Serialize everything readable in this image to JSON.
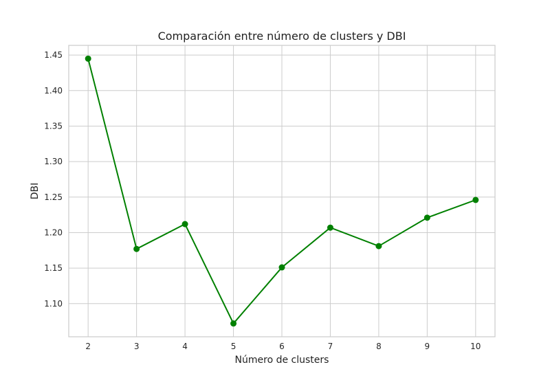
{
  "chart_data": {
    "type": "line",
    "title": "Comparación entre número de clusters y DBI",
    "xlabel": "Número de clusters",
    "ylabel": "DBI",
    "x": [
      2,
      3,
      4,
      5,
      6,
      7,
      8,
      9,
      10
    ],
    "series": [
      {
        "values": [
          1.445,
          1.177,
          1.212,
          1.072,
          1.151,
          1.207,
          1.181,
          1.221,
          1.246
        ]
      }
    ],
    "x_ticks": [
      "2",
      "3",
      "4",
      "5",
      "6",
      "7",
      "8",
      "9",
      "10"
    ],
    "y_ticks": [
      "1.10",
      "1.15",
      "1.20",
      "1.25",
      "1.30",
      "1.35",
      "1.40",
      "1.45"
    ],
    "y_tick_values": [
      1.1,
      1.15,
      1.2,
      1.25,
      1.3,
      1.35,
      1.4,
      1.45
    ],
    "xlim": [
      1.6,
      10.4
    ],
    "ylim": [
      1.0533,
      1.4637
    ],
    "grid": true,
    "line_color": "#008000",
    "marker_color": "#008000",
    "grid_color": "#cccccc"
  }
}
